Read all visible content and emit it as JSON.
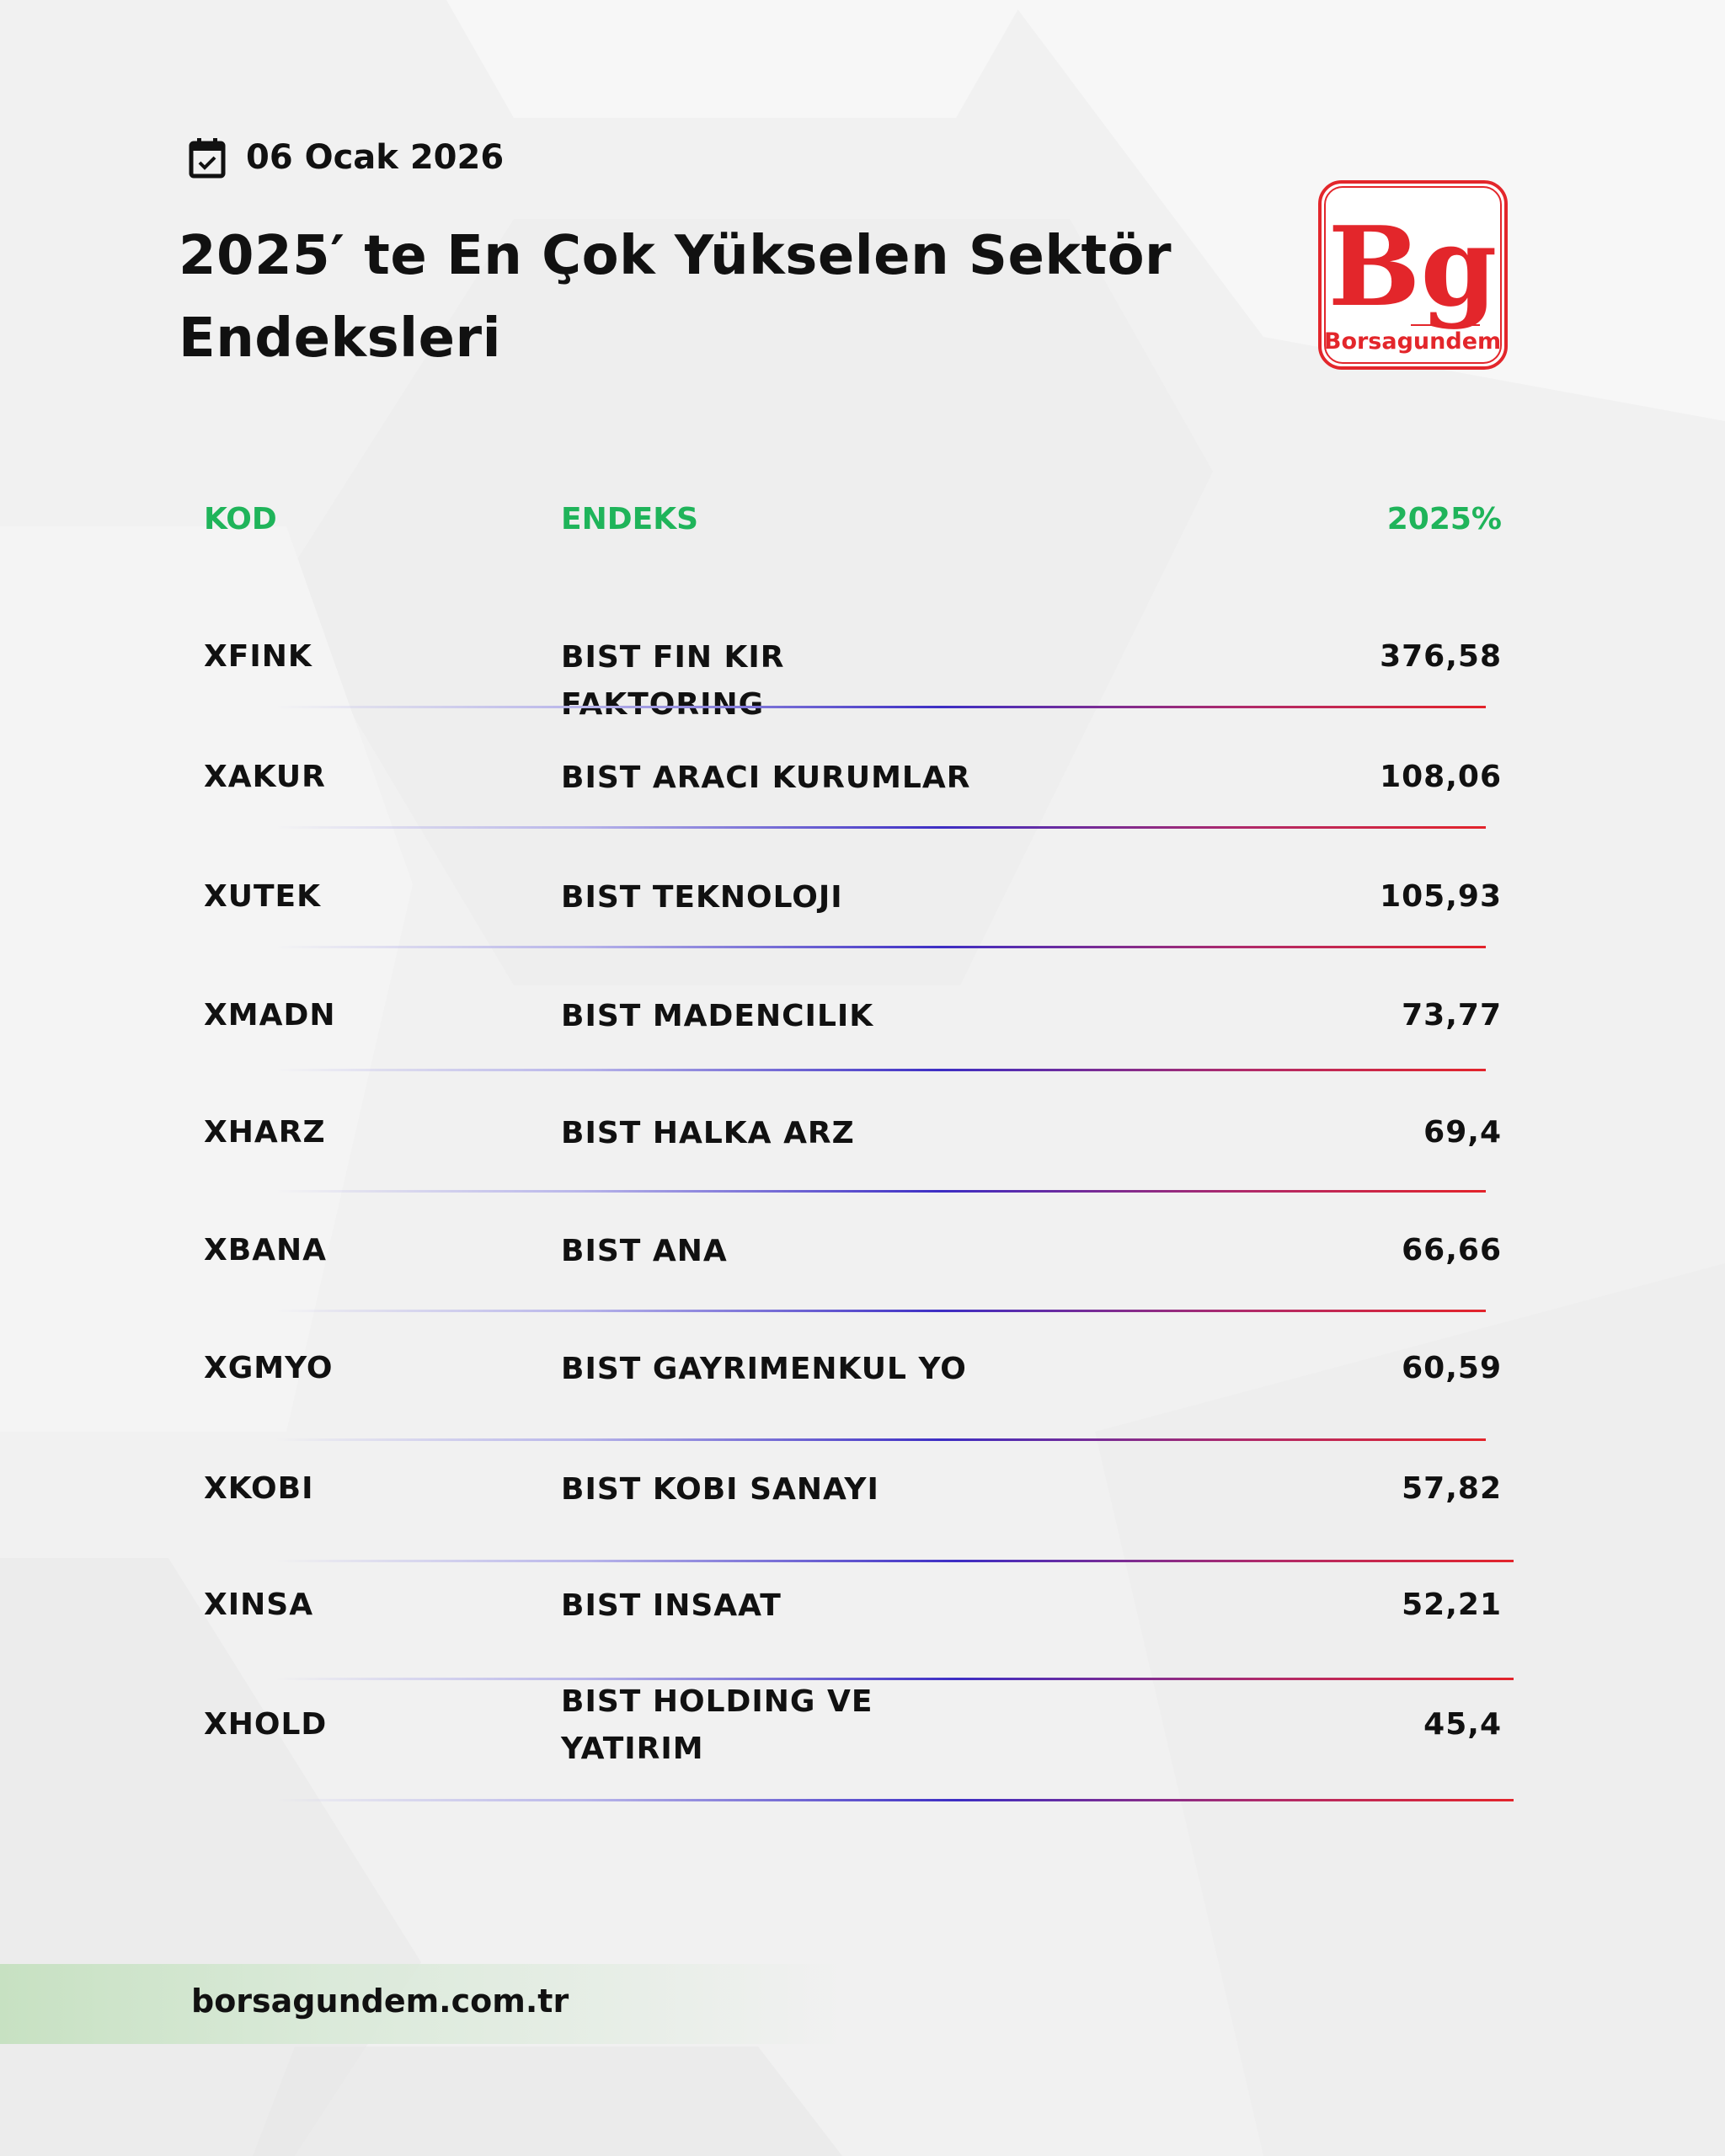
{
  "date": "06 Ocak 2026",
  "title": "2025′ te En Çok Yükselen Sektör Endeksleri",
  "logo": {
    "letters": "Bg",
    "name": "Borsagundem",
    "color": "#e3262b"
  },
  "table": {
    "headers": {
      "code": "KOD",
      "index": "ENDEKS",
      "pct": "2025%"
    },
    "header_color": "#1fb45a",
    "rows": [
      {
        "code": "XFINK",
        "index": "BIST FIN KIR FAKTORING",
        "pct": "376,58"
      },
      {
        "code": "XAKUR",
        "index": "BIST ARACI KURUMLAR",
        "pct": "108,06"
      },
      {
        "code": "XUTEK",
        "index": "BIST TEKNOLOJI",
        "pct": "105,93"
      },
      {
        "code": "XMADN",
        "index": "BIST MADENCILIK",
        "pct": "73,77"
      },
      {
        "code": "XHARZ",
        "index": "BIST HALKA ARZ",
        "pct": "69,4"
      },
      {
        "code": "XBANA",
        "index": "BIST ANA",
        "pct": "66,66"
      },
      {
        "code": "XGMYO",
        "index": "BIST GAYRIMENKUL YO",
        "pct": "60,59"
      },
      {
        "code": "XKOBI",
        "index": "BIST KOBI SANAYI",
        "pct": "57,82"
      },
      {
        "code": "XINSA",
        "index": "BIST INSAAT",
        "pct": "52,21"
      },
      {
        "code": "XHOLD",
        "index": "BIST HOLDING VE YATIRIM",
        "pct": "45,4"
      }
    ]
  },
  "footer": {
    "website": "borsagundem.com.tr"
  }
}
